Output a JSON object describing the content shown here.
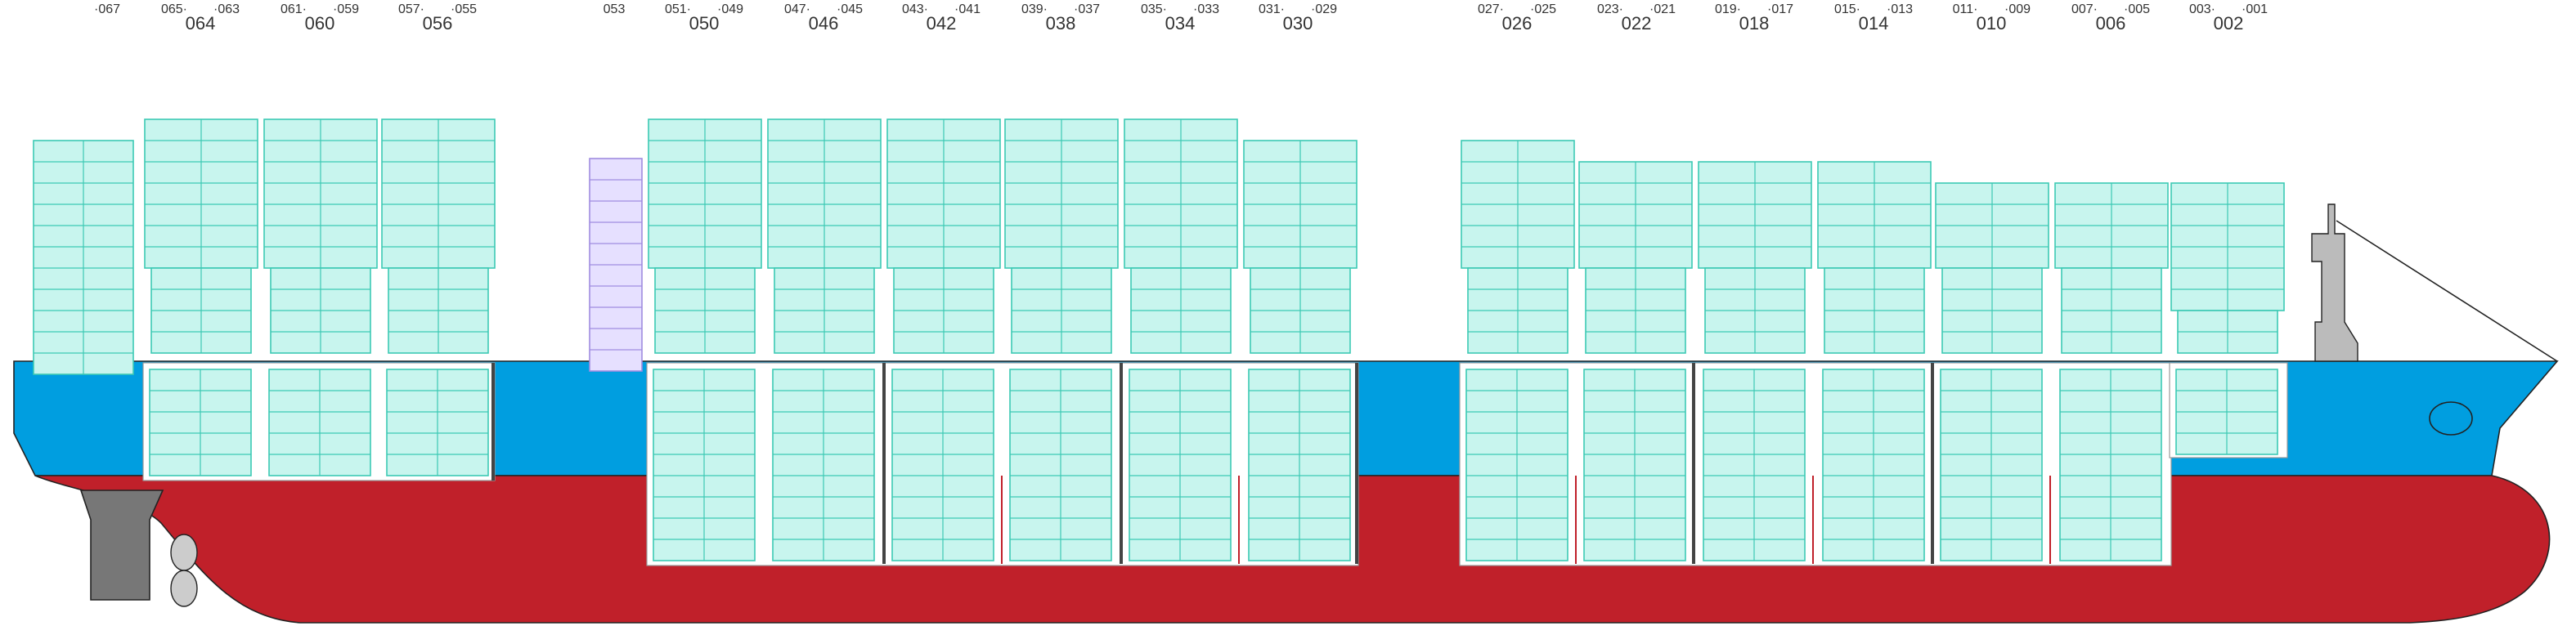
{
  "bays": [
    {
      "right": "·067"
    },
    {
      "left": "065·",
      "right": "·063",
      "label": "064"
    },
    {
      "left": "061·",
      "right": "·059",
      "label": "060"
    },
    {
      "left": "057·",
      "right": "·055",
      "label": "056"
    },
    {
      "single": "053"
    },
    {
      "left": "051·",
      "right": "·049",
      "label": "050"
    },
    {
      "left": "047·",
      "right": "·045",
      "label": "046"
    },
    {
      "left": "043·",
      "right": "·041",
      "label": "042"
    },
    {
      "left": "039·",
      "right": "·037",
      "label": "038"
    },
    {
      "left": "035·",
      "right": "·033",
      "label": "034"
    },
    {
      "left": "031·",
      "right": "·029",
      "label": "030"
    },
    {
      "left": "027·",
      "right": "·025",
      "label": "026"
    },
    {
      "left": "023·",
      "right": "·021",
      "label": "022"
    },
    {
      "left": "019·",
      "right": "·017",
      "label": "018"
    },
    {
      "left": "015·",
      "right": "·013",
      "label": "014"
    },
    {
      "left": "011·",
      "right": "·009",
      "label": "010"
    },
    {
      "left": "007·",
      "right": "·005",
      "label": "006"
    },
    {
      "left": "003·",
      "right": "·001",
      "label": "002"
    }
  ]
}
